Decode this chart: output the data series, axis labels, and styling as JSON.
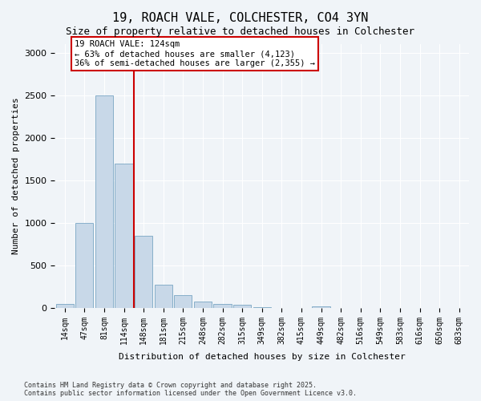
{
  "title": "19, ROACH VALE, COLCHESTER, CO4 3YN",
  "subtitle": "Size of property relative to detached houses in Colchester",
  "xlabel": "Distribution of detached houses by size in Colchester",
  "ylabel": "Number of detached properties",
  "bar_color": "#c8d8e8",
  "bar_edge_color": "#6699bb",
  "background_color": "#f0f4f8",
  "grid_color": "#ffffff",
  "categories": [
    "14sqm",
    "47sqm",
    "81sqm",
    "114sqm",
    "148sqm",
    "181sqm",
    "215sqm",
    "248sqm",
    "282sqm",
    "315sqm",
    "349sqm",
    "382sqm",
    "415sqm",
    "449sqm",
    "482sqm",
    "516sqm",
    "549sqm",
    "583sqm",
    "616sqm",
    "650sqm",
    "683sqm"
  ],
  "values": [
    50,
    1000,
    2500,
    1700,
    850,
    270,
    150,
    70,
    50,
    40,
    5,
    0,
    0,
    20,
    0,
    0,
    0,
    0,
    0,
    0,
    0
  ],
  "vline_x": 3.5,
  "vline_color": "#cc0000",
  "annotation_text": "19 ROACH VALE: 124sqm\n← 63% of detached houses are smaller (4,123)\n36% of semi-detached houses are larger (2,355) →",
  "annotation_box_color": "#ffffff",
  "annotation_box_edge": "#cc0000",
  "ylim": [
    0,
    3100
  ],
  "yticks": [
    0,
    500,
    1000,
    1500,
    2000,
    2500,
    3000
  ],
  "footnote": "Contains HM Land Registry data © Crown copyright and database right 2025.\nContains public sector information licensed under the Open Government Licence v3.0."
}
